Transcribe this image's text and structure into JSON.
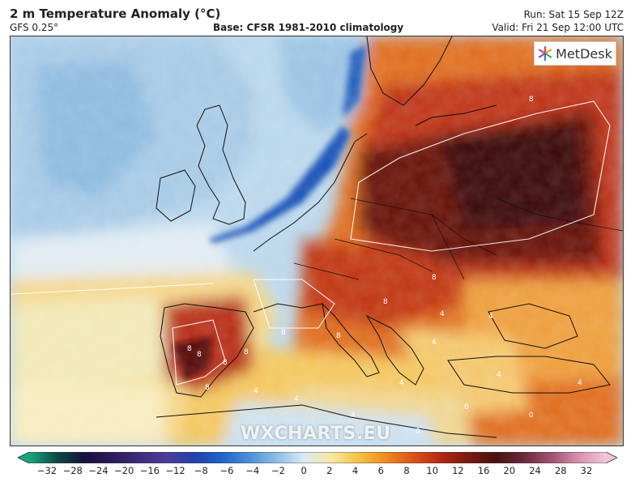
{
  "header": {
    "title": "2 m Temperature Anomaly (°C)",
    "model": "GFS 0.25°",
    "base": "Base: CFSR 1981-2010 climatology",
    "run": "Run: Sat 15 Sep 12Z",
    "valid": "Valid: Fri 21 Sep 12:00 UTC"
  },
  "logo": {
    "text": "MetDesk",
    "icon": "metdesk-star-icon"
  },
  "watermark": "WXCHARTS.EU",
  "colorbar": {
    "ticks": [
      "−32",
      "−28",
      "−24",
      "−20",
      "−16",
      "−12",
      "−8",
      "−6",
      "−4",
      "−2",
      "0",
      "2",
      "4",
      "6",
      "8",
      "10",
      "12",
      "16",
      "20",
      "24",
      "28",
      "32"
    ],
    "colors": [
      "#1aa67a",
      "#0b4a48",
      "#15123a",
      "#2d1a5a",
      "#3f2a7a",
      "#4b3d9b",
      "#2241a8",
      "#1c64c7",
      "#4a8fd6",
      "#8dbce6",
      "#dbeaf4",
      "#f6e8a6",
      "#f6c245",
      "#ee8a1e",
      "#d9531a",
      "#b42814",
      "#7a1a10",
      "#4a1010",
      "#6a2a3a",
      "#a05070",
      "#d890b0",
      "#f2c6d6"
    ]
  },
  "map_labels": [
    "8",
    "8",
    "8",
    "8",
    "8",
    "8",
    "8",
    "8",
    "8",
    "8",
    "4",
    "4",
    "4",
    "4",
    "4",
    "4",
    "4",
    "4",
    "4",
    "0",
    "0",
    "0"
  ]
}
